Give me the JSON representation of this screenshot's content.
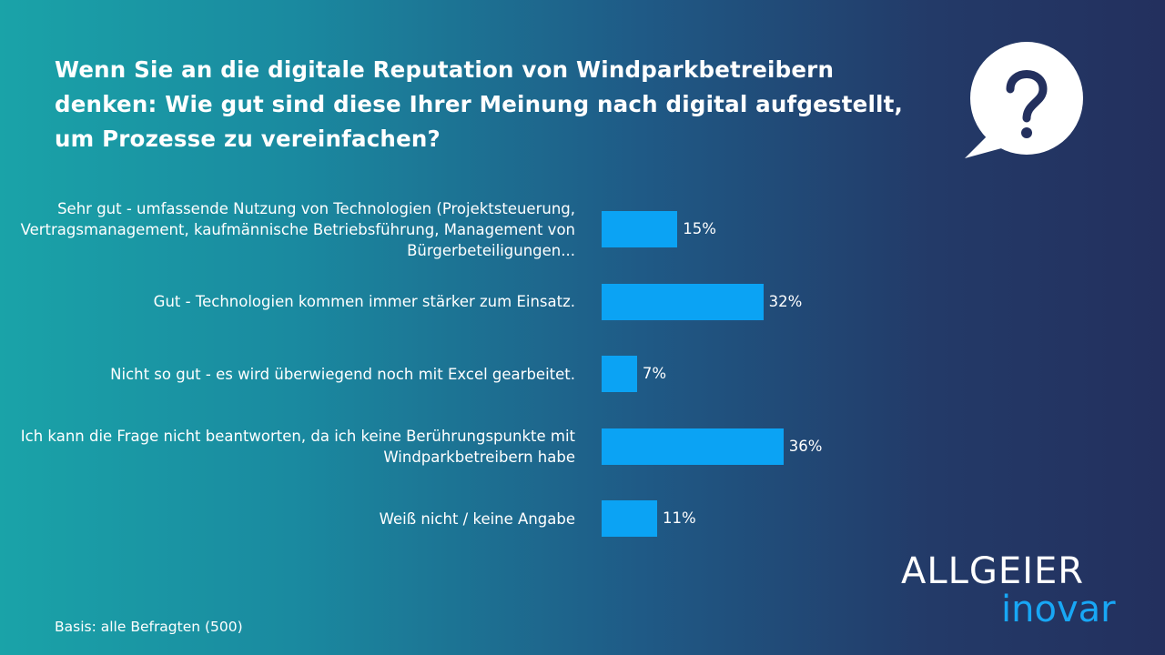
{
  "slide": {
    "question": "Wenn Sie an die digitale Reputation von Windparkbetreibern denken: Wie gut sind diese Ihrer Meinung nach digital aufgestellt, um Prozesse zu vereinfachen?",
    "question_icon": "question-bubble-icon",
    "footnote": "Basis: alle Befragten (500)",
    "logo": {
      "top": "ALLGEIER",
      "bottom": "inovar"
    },
    "colors": {
      "bar": "#0ba3f4",
      "logo_accent": "#18a7f5",
      "text": "#ffffff"
    }
  },
  "chart_data": {
    "type": "bar",
    "orientation": "horizontal",
    "categories": [
      "Sehr gut - umfassende Nutzung von Technologien (Projektsteuerung, Vertragsmanagement, kaufmännische Betriebsführung, Management von Bürgerbeteiligungen...",
      "Gut - Technologien kommen immer stärker zum Einsatz.",
      "Nicht so gut - es wird überwiegend noch mit Excel gearbeitet.",
      "Ich kann die Frage nicht beantworten, da ich keine Berührungspunkte mit Windparkbetreibern habe",
      "Weiß nicht / keine Angabe"
    ],
    "values": [
      15,
      32,
      7,
      36,
      11
    ],
    "value_labels": [
      "15%",
      "32%",
      "7%",
      "36%",
      "11%"
    ],
    "unit": "%",
    "grid": false,
    "legend": "none"
  }
}
